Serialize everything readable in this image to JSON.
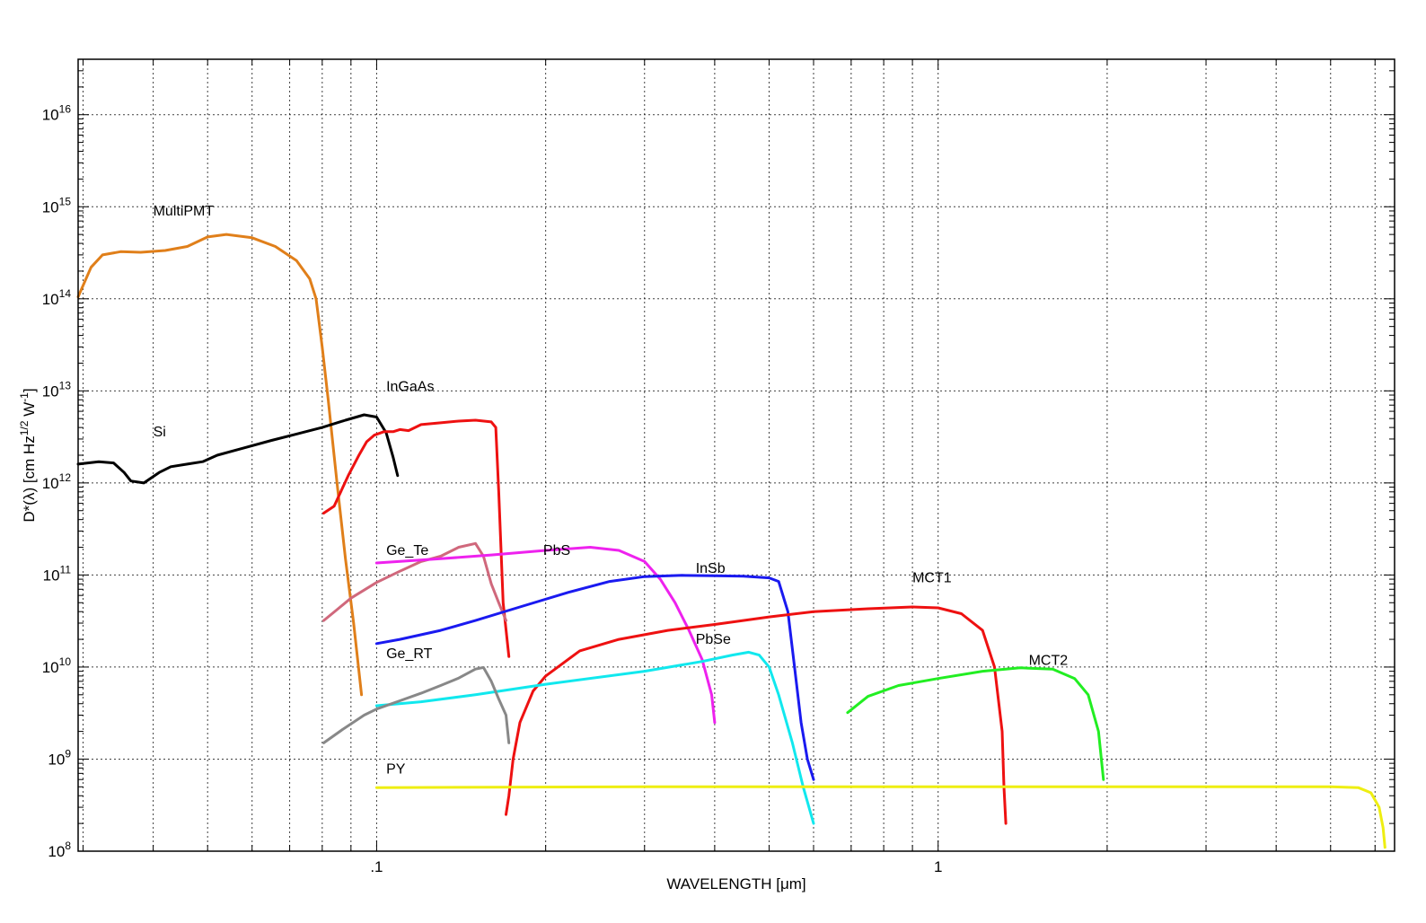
{
  "chart_data": {
    "type": "line",
    "xlabel": "WAVELENGTH  [μm]",
    "ylabel_parts": [
      "D*(λ) [cm Hz",
      "1/2",
      " W",
      "-1",
      "]"
    ],
    "x_scale": "log",
    "y_scale": "log",
    "xlim": [
      0.0294,
      6.5
    ],
    "ylim": [
      100000000.0,
      4e+16
    ],
    "grid": true,
    "x_ticks": [
      {
        "value": 0.1,
        "label": ".1"
      },
      {
        "value": 1,
        "label": "1"
      }
    ],
    "y_ticks": [
      {
        "value": 100000000.0,
        "base": "10",
        "exp": "8"
      },
      {
        "value": 1000000000.0,
        "base": "10",
        "exp": "9"
      },
      {
        "value": 10000000000.0,
        "base": "10",
        "exp": "10"
      },
      {
        "value": 100000000000.0,
        "base": "10",
        "exp": "11"
      },
      {
        "value": 1000000000000.0,
        "base": "10",
        "exp": "12"
      },
      {
        "value": 10000000000000.0,
        "base": "10",
        "exp": "13"
      },
      {
        "value": 100000000000000.0,
        "base": "10",
        "exp": "14"
      },
      {
        "value": 1000000000000000.0,
        "base": "10",
        "exp": "15"
      },
      {
        "value": 1e+16,
        "base": "10",
        "exp": "16"
      }
    ],
    "series": [
      {
        "name": "MultiPMT",
        "color": "#e07f1a",
        "label_at": [
          0.04,
          800000000000000.0
        ],
        "points": [
          [
            0.0294,
            105000000000000.0
          ],
          [
            0.031,
            220000000000000.0
          ],
          [
            0.0325,
            300000000000000.0
          ],
          [
            0.035,
            325000000000000.0
          ],
          [
            0.038,
            320000000000000.0
          ],
          [
            0.042,
            335000000000000.0
          ],
          [
            0.046,
            370000000000000.0
          ],
          [
            0.05,
            470000000000000.0
          ],
          [
            0.054,
            500000000000000.0
          ],
          [
            0.06,
            460000000000000.0
          ],
          [
            0.066,
            370000000000000.0
          ],
          [
            0.072,
            260000000000000.0
          ],
          [
            0.076,
            165000000000000.0
          ],
          [
            0.078,
            100000000000000.0
          ],
          [
            0.08,
            30000000000000.0
          ],
          [
            0.082,
            8000000000000.0
          ],
          [
            0.085,
            1000000000000.0
          ],
          [
            0.088,
            150000000000.0
          ],
          [
            0.091,
            30000000000.0
          ],
          [
            0.094,
            5000000000.0
          ]
        ]
      },
      {
        "name": "Si",
        "color": "#000000",
        "label_at": [
          0.04,
          3200000000000.0
        ],
        "points": [
          [
            0.0294,
            1600000000000.0
          ],
          [
            0.032,
            1700000000000.0
          ],
          [
            0.034,
            1650000000000.0
          ],
          [
            0.0355,
            1300000000000.0
          ],
          [
            0.0365,
            1050000000000.0
          ],
          [
            0.0385,
            1000000000000.0
          ],
          [
            0.041,
            1300000000000.0
          ],
          [
            0.043,
            1500000000000.0
          ],
          [
            0.046,
            1600000000000.0
          ],
          [
            0.049,
            1700000000000.0
          ],
          [
            0.052,
            2000000000000.0
          ],
          [
            0.058,
            2400000000000.0
          ],
          [
            0.065,
            2900000000000.0
          ],
          [
            0.072,
            3400000000000.0
          ],
          [
            0.08,
            4000000000000.0
          ],
          [
            0.088,
            4800000000000.0
          ],
          [
            0.095,
            5500000000000.0
          ],
          [
            0.1,
            5200000000000.0
          ],
          [
            0.104,
            3500000000000.0
          ],
          [
            0.107,
            1900000000000.0
          ],
          [
            0.109,
            1200000000000.0
          ]
        ]
      },
      {
        "name": "InGaAs",
        "color": "#ee1111",
        "label_at": [
          0.104,
          10000000000000.0
        ],
        "points": [
          [
            0.0805,
            470000000000.0
          ],
          [
            0.084,
            560000000000.0
          ],
          [
            0.089,
            1200000000000.0
          ],
          [
            0.093,
            2000000000000.0
          ],
          [
            0.096,
            2800000000000.0
          ],
          [
            0.099,
            3300000000000.0
          ],
          [
            0.103,
            3600000000000.0
          ],
          [
            0.107,
            3600000000000.0
          ],
          [
            0.11,
            3800000000000.0
          ],
          [
            0.114,
            3700000000000.0
          ],
          [
            0.12,
            4300000000000.0
          ],
          [
            0.13,
            4500000000000.0
          ],
          [
            0.14,
            4700000000000.0
          ],
          [
            0.15,
            4800000000000.0
          ],
          [
            0.16,
            4600000000000.0
          ],
          [
            0.163,
            4000000000000.0
          ],
          [
            0.165,
            800000000000.0
          ],
          [
            0.168,
            50000000000.0
          ],
          [
            0.172,
            13000000000.0
          ]
        ]
      },
      {
        "name": "Ge_Te",
        "color": "#d0687c",
        "label_at": [
          0.104,
          165000000000.0
        ],
        "points": [
          [
            0.0805,
            32000000000.0
          ],
          [
            0.085,
            42000000000.0
          ],
          [
            0.09,
            56000000000.0
          ],
          [
            0.1,
            83000000000.0
          ],
          [
            0.11,
            110000000000.0
          ],
          [
            0.12,
            140000000000.0
          ],
          [
            0.13,
            160000000000.0
          ],
          [
            0.14,
            200000000000.0
          ],
          [
            0.15,
            220000000000.0
          ],
          [
            0.155,
            160000000000.0
          ],
          [
            0.16,
            80000000000.0
          ],
          [
            0.165,
            50000000000.0
          ],
          [
            0.17,
            32000000000.0
          ]
        ]
      },
      {
        "name": "PbS",
        "color": "#ee22ee",
        "label_at": [
          0.198,
          165000000000.0
        ],
        "points": [
          [
            0.1,
            135000000000.0
          ],
          [
            0.13,
            150000000000.0
          ],
          [
            0.16,
            165000000000.0
          ],
          [
            0.2,
            185000000000.0
          ],
          [
            0.24,
            200000000000.0
          ],
          [
            0.27,
            185000000000.0
          ],
          [
            0.3,
            140000000000.0
          ],
          [
            0.32,
            90000000000.0
          ],
          [
            0.34,
            50000000000.0
          ],
          [
            0.36,
            25000000000.0
          ],
          [
            0.38,
            12000000000.0
          ],
          [
            0.395,
            5000000000.0
          ],
          [
            0.4,
            2500000000.0
          ]
        ]
      },
      {
        "name": "InSb",
        "color": "#1a1af0",
        "label_at": [
          0.37,
          105000000000.0
        ],
        "points": [
          [
            0.1,
            18000000000.0
          ],
          [
            0.11,
            20000000000.0
          ],
          [
            0.13,
            25000000000.0
          ],
          [
            0.15,
            32000000000.0
          ],
          [
            0.18,
            45000000000.0
          ],
          [
            0.22,
            65000000000.0
          ],
          [
            0.26,
            85000000000.0
          ],
          [
            0.3,
            96000000000.0
          ],
          [
            0.35,
            99000000000.0
          ],
          [
            0.4,
            98000000000.0
          ],
          [
            0.45,
            97000000000.0
          ],
          [
            0.5,
            93000000000.0
          ],
          [
            0.52,
            85000000000.0
          ],
          [
            0.54,
            40000000000.0
          ],
          [
            0.555,
            10000000000.0
          ],
          [
            0.57,
            2500000000.0
          ],
          [
            0.585,
            1000000000.0
          ],
          [
            0.6,
            600000000.0
          ]
        ]
      },
      {
        "name": "MCT1",
        "color": "#ee1111",
        "label_at": [
          0.9,
          83000000000.0
        ],
        "points": [
          [
            0.17,
            250000000.0
          ],
          [
            0.172,
            400000000.0
          ],
          [
            0.175,
            1000000000.0
          ],
          [
            0.18,
            2500000000.0
          ],
          [
            0.19,
            5500000000.0
          ],
          [
            0.2,
            8000000000.0
          ],
          [
            0.23,
            15000000000.0
          ],
          [
            0.27,
            20000000000.0
          ],
          [
            0.33,
            25000000000.0
          ],
          [
            0.4,
            29000000000.0
          ],
          [
            0.5,
            35000000000.0
          ],
          [
            0.6,
            40000000000.0
          ],
          [
            0.75,
            43000000000.0
          ],
          [
            0.9,
            45000000000.0
          ],
          [
            1.0,
            44000000000.0
          ],
          [
            1.1,
            38000000000.0
          ],
          [
            1.2,
            25000000000.0
          ],
          [
            1.26,
            10000000000.0
          ],
          [
            1.3,
            2000000000.0
          ],
          [
            1.31,
            500000000.0
          ],
          [
            1.32,
            200000000.0
          ]
        ]
      },
      {
        "name": "PbSe",
        "color": "#11e8ee",
        "label_at": [
          0.37,
          18000000000.0
        ],
        "points": [
          [
            0.1,
            3800000000.0
          ],
          [
            0.12,
            4200000000.0
          ],
          [
            0.15,
            5000000000.0
          ],
          [
            0.2,
            6500000000.0
          ],
          [
            0.3,
            9000000000.0
          ],
          [
            0.38,
            11500000000.0
          ],
          [
            0.43,
            13500000000.0
          ],
          [
            0.46,
            14500000000.0
          ],
          [
            0.48,
            13500000000.0
          ],
          [
            0.5,
            10000000000.0
          ],
          [
            0.52,
            5000000000.0
          ],
          [
            0.55,
            1500000000.0
          ],
          [
            0.575,
            500000000.0
          ],
          [
            0.6,
            200000000.0
          ]
        ]
      },
      {
        "name": "Ge_RT",
        "color": "#888888",
        "label_at": [
          0.104,
          12500000000.0
        ],
        "points": [
          [
            0.0805,
            1500000000.0
          ],
          [
            0.087,
            2100000000.0
          ],
          [
            0.095,
            3000000000.0
          ],
          [
            0.1,
            3500000000.0
          ],
          [
            0.11,
            4300000000.0
          ],
          [
            0.12,
            5200000000.0
          ],
          [
            0.13,
            6300000000.0
          ],
          [
            0.14,
            7600000000.0
          ],
          [
            0.15,
            9500000000.0
          ],
          [
            0.155,
            9900000000.0
          ],
          [
            0.16,
            7000000000.0
          ],
          [
            0.165,
            4500000000.0
          ],
          [
            0.17,
            3000000000.0
          ],
          [
            0.172,
            1500000000.0
          ]
        ]
      },
      {
        "name": "MCT2",
        "color": "#22ee22",
        "label_at": [
          1.45,
          10600000000.0
        ],
        "points": [
          [
            0.69,
            3200000000.0
          ],
          [
            0.75,
            4800000000.0
          ],
          [
            0.85,
            6300000000.0
          ],
          [
            1.0,
            7500000000.0
          ],
          [
            1.2,
            9000000000.0
          ],
          [
            1.4,
            9800000000.0
          ],
          [
            1.6,
            9500000000.0
          ],
          [
            1.75,
            7500000000.0
          ],
          [
            1.85,
            5000000000.0
          ],
          [
            1.93,
            2000000000.0
          ],
          [
            1.97,
            600000000.0
          ]
        ]
      },
      {
        "name": "PY",
        "color": "#eeee11",
        "label_at": [
          0.104,
          700000000.0
        ],
        "points": [
          [
            0.1,
            490000000.0
          ],
          [
            0.3,
            500000000.0
          ],
          [
            1.0,
            500000000.0
          ],
          [
            3.0,
            500000000.0
          ],
          [
            5.0,
            500000000.0
          ],
          [
            5.6,
            490000000.0
          ],
          [
            5.9,
            430000000.0
          ],
          [
            6.1,
            300000000.0
          ],
          [
            6.2,
            180000000.0
          ],
          [
            6.25,
            110000000.0
          ]
        ]
      }
    ]
  }
}
